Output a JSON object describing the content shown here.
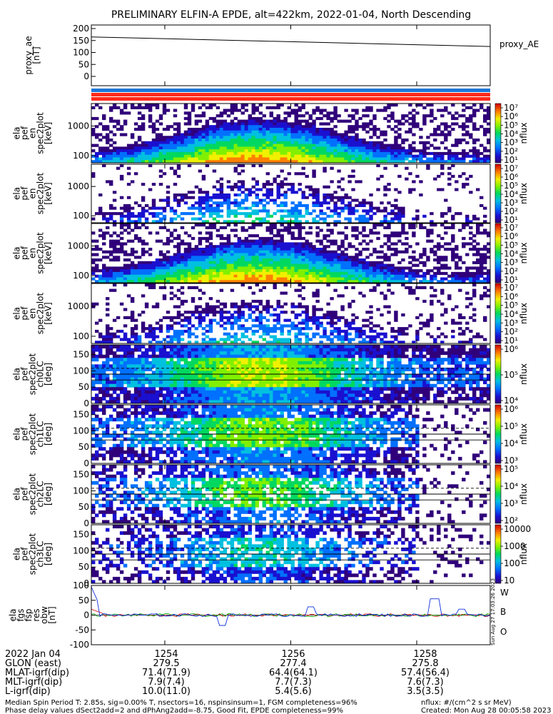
{
  "title": "PRELIMINARY ELFIN-A EPDE, alt=422km, 2022-01-04, North Descending",
  "panels": [
    {
      "id": "proxy",
      "ylabel": [
        "proxy_ae",
        "[nT]"
      ],
      "yticks": [
        "200",
        "150",
        "100",
        "50",
        "0"
      ],
      "legend": "proxy_AE"
    },
    {
      "id": "en1",
      "ylabel": [
        "ela",
        "pef",
        "en",
        "spec2plot",
        "[keV]"
      ],
      "yticks": [
        "1000",
        "100"
      ]
    },
    {
      "id": "en2",
      "ylabel": [
        "ela",
        "pef",
        "en",
        "spec2plot",
        "[keV]"
      ],
      "yticks": [
        "1000",
        "100"
      ]
    },
    {
      "id": "en3",
      "ylabel": [
        "ela",
        "pef",
        "en",
        "spec2plot",
        "[keV]"
      ],
      "yticks": [
        "1000",
        "100"
      ]
    },
    {
      "id": "en4",
      "ylabel": [
        "ela",
        "pef",
        "en",
        "spec2plot",
        "[keV]"
      ],
      "yticks": [
        "1000",
        "100"
      ]
    },
    {
      "id": "pa0",
      "ylabel": [
        "ela",
        "pef",
        "spec2plot",
        "ch0LC",
        "[deg]"
      ],
      "yticks": [
        "150",
        "100",
        "50",
        "0"
      ]
    },
    {
      "id": "pa1",
      "ylabel": [
        "ela",
        "pef",
        "spec2plot",
        "ch1LC",
        "[deg]"
      ],
      "yticks": [
        "150",
        "100",
        "50",
        "0"
      ]
    },
    {
      "id": "pa2",
      "ylabel": [
        "ela",
        "pef",
        "spec2plot",
        "ch2LC",
        "[deg]"
      ],
      "yticks": [
        "150",
        "100",
        "50",
        "0"
      ]
    },
    {
      "id": "pa3",
      "ylabel": [
        "ela",
        "pef",
        "spec2plot",
        "ch3LC",
        "[deg]"
      ],
      "yticks": [
        "150",
        "100",
        "50",
        "0"
      ]
    },
    {
      "id": "fgm",
      "ylabel": [
        "ela",
        "fgs",
        "fsp",
        "res",
        "obw",
        "[nT]"
      ],
      "yticks": [
        "100",
        "50",
        "0",
        "-50",
        "-100"
      ]
    }
  ],
  "colorbars": [
    {
      "labels": [
        "10⁷",
        "10⁶",
        "10⁵",
        "10⁴",
        "10³",
        "10²",
        "10¹"
      ],
      "unit": "nflux"
    },
    {
      "labels": [
        "10⁷",
        "10⁶",
        "10⁵",
        "10⁴",
        "10³",
        "10²",
        "10¹"
      ],
      "unit": "nflux"
    },
    {
      "labels": [
        "10⁷",
        "10⁶",
        "10⁵",
        "10⁴",
        "10³",
        "10²",
        "10¹"
      ],
      "unit": "nflux"
    },
    {
      "labels": [
        "10⁷",
        "10⁶",
        "10⁵",
        "10⁴",
        "10³",
        "10²",
        "10¹"
      ],
      "unit": "nflux"
    },
    {
      "labels": [
        "10⁶",
        "10⁵",
        "10⁴"
      ],
      "unit": "nflux"
    },
    {
      "labels": [
        "10⁶",
        "10⁵",
        "10⁴",
        "10³"
      ],
      "unit": "nflux"
    },
    {
      "labels": [
        "10⁵",
        "10⁴",
        "10³",
        "10²"
      ],
      "unit": "nflux"
    },
    {
      "labels": [
        "10000",
        "1000",
        "100",
        "10"
      ],
      "unit": "nflux"
    }
  ],
  "fgm_legend": [
    "W",
    "B",
    "O"
  ],
  "fgm_legend_colors": [
    "#e02020",
    "#20b020",
    "#1030e0"
  ],
  "side_stamp": "Sun Aug 27 17:03:26 2023",
  "xaxis": {
    "row_labels": [
      "2022 Jan 04",
      "GLON (east)",
      "MLAT-igrf(dip)",
      "MLT-igrf(dip)",
      "L-igrf(dip)"
    ],
    "columns": [
      {
        "time": "1254",
        "glon": "279.5",
        "mlat": "71.4(71.9)",
        "mlt": "7.9(7.4)",
        "l": "10.0(11.0)"
      },
      {
        "time": "1256",
        "glon": "277.4",
        "mlat": "64.4(64.1)",
        "mlt": "7.7(7.3)",
        "l": "5.4(5.6)"
      },
      {
        "time": "1258",
        "glon": "275.8",
        "mlat": "57.4(56.4)",
        "mlt": "7.6(7.3)",
        "l": "3.5(3.5)"
      }
    ]
  },
  "footer": {
    "line1": "Median Spin Period T: 2.85s, sig=0.00% T, nsectors=16, nspinsinsum=1, FGM completeness=96%",
    "line2": "Phase delay values dSect2add=2 and dPhAng2add=-8.75, Good Fit, EPDE completeness=99%",
    "units": "nflux: #/(cm^2 s sr MeV)",
    "created": "Created: Mon Aug 28 00:05:58 2023"
  },
  "chart_data": {
    "type": "heatmap",
    "time_axis": {
      "start": "12:52:50",
      "end": "12:59:10",
      "major_ticks": [
        "1254",
        "1256",
        "1258"
      ]
    },
    "proxy_ae": {
      "type": "line",
      "x": [
        "12:52:50",
        "12:59:10"
      ],
      "y": [
        165,
        125
      ],
      "ylim": [
        0,
        200
      ],
      "legend": "proxy_AE"
    },
    "energy_spectrograms": [
      {
        "panel": "en1",
        "ylim_keV": [
          60,
          7000
        ],
        "log": true,
        "cbar_range": [
          10,
          10000000.0
        ],
        "peak_time": "12:55:40",
        "peak_energy_keV": 100
      },
      {
        "panel": "en2",
        "ylim_keV": [
          60,
          7000
        ],
        "log": true,
        "cbar_range": [
          10,
          10000000.0
        ],
        "peak_time": "12:55:40",
        "peak_energy_keV": 100
      },
      {
        "panel": "en3",
        "ylim_keV": [
          60,
          7000
        ],
        "log": true,
        "cbar_range": [
          10,
          10000000.0
        ],
        "peak_time": "12:55:40",
        "peak_energy_keV": 100
      },
      {
        "panel": "en4",
        "ylim_keV": [
          60,
          7000
        ],
        "log": true,
        "cbar_range": [
          10,
          10000000.0
        ],
        "peak_time": "12:55:40",
        "peak_energy_keV": 100
      }
    ],
    "pitch_angle_spectrograms": [
      {
        "panel": "pa0",
        "ylim_deg": [
          0,
          180
        ],
        "cbar_range": [
          3000,
          10000000.0
        ]
      },
      {
        "panel": "pa1",
        "ylim_deg": [
          0,
          180
        ],
        "cbar_range": [
          300,
          10000000.0
        ]
      },
      {
        "panel": "pa2",
        "ylim_deg": [
          0,
          180
        ],
        "cbar_range": [
          30,
          1000000.0
        ]
      },
      {
        "panel": "pa3",
        "ylim_deg": [
          0,
          180
        ],
        "cbar_range": [
          10,
          10000.0
        ]
      }
    ],
    "fgm_residuals": {
      "ylim": [
        -100,
        100
      ],
      "series": [
        {
          "name": "W",
          "color": "#e02020"
        },
        {
          "name": "B",
          "color": "#20b020"
        },
        {
          "name": "O",
          "color": "#1030e0"
        }
      ]
    }
  }
}
